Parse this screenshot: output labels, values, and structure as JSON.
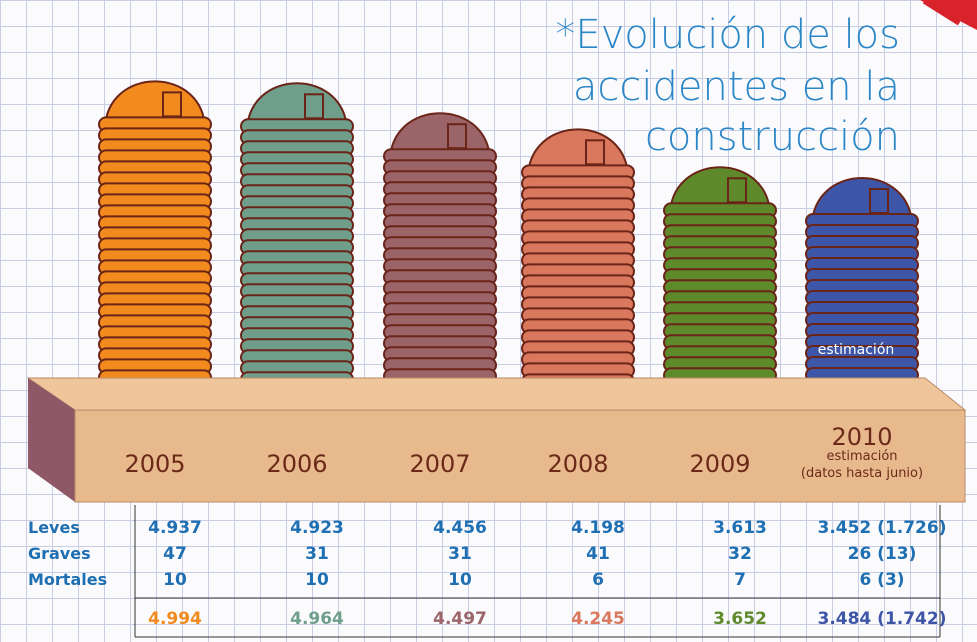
{
  "chart_data": {
    "type": "pictogram",
    "title_lines": [
      "*Evolución de los",
      "accidentes en la",
      "construcción"
    ],
    "categories": [
      "2005",
      "2006",
      "2007",
      "2008",
      "2009",
      "2010"
    ],
    "category_notes": {
      "estimate": "estimación",
      "scope": "(datos hasta junio)"
    },
    "stack_label": "estimación",
    "colors": [
      "#f28a1e",
      "#6f9e8b",
      "#9a6468",
      "#d9785c",
      "#5e8a2b",
      "#3e56a8"
    ],
    "rows": [
      {
        "label": "Leves",
        "values": [
          "4.937",
          "4.923",
          "4.456",
          "4.198",
          "3.613",
          "3.452 (1.726)"
        ]
      },
      {
        "label": "Graves",
        "values": [
          "47",
          "31",
          "31",
          "41",
          "32",
          "26 (13)"
        ]
      },
      {
        "label": "Mortales",
        "values": [
          "10",
          "10",
          "10",
          "6",
          "7",
          "6 (3)"
        ]
      }
    ],
    "values": [
      4994,
      4964,
      4497,
      4245,
      3652,
      3484
    ],
    "value_labels": [
      "4.994",
      "4.964",
      "4.497",
      "4.245",
      "3.652",
      "3.484 (1.742)"
    ]
  }
}
